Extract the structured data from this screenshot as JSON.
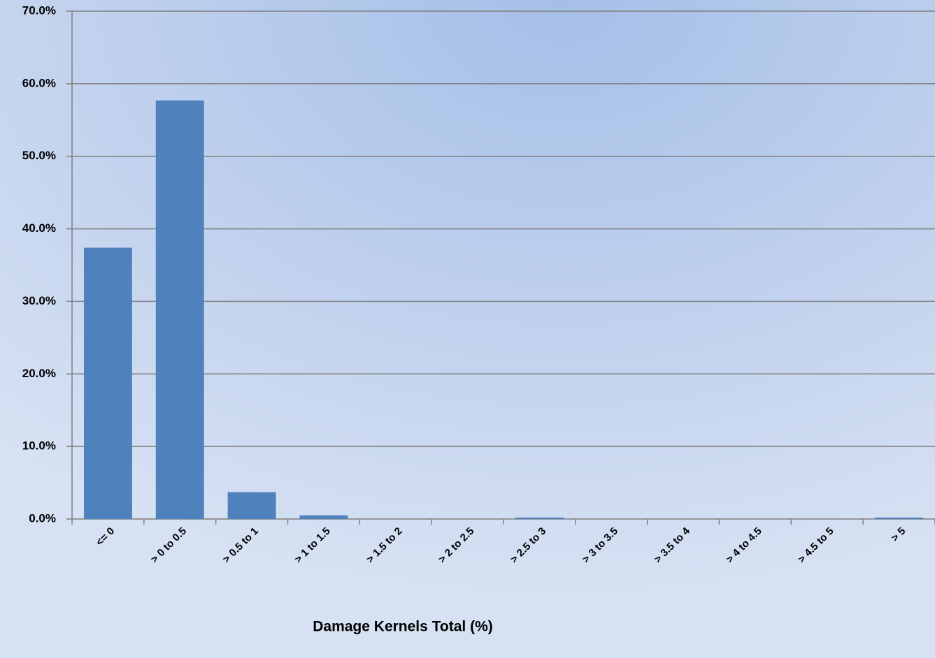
{
  "chart_data": {
    "type": "bar",
    "x_label": "Damage Kernels Total (%)",
    "categories": [
      "<= 0",
      "> 0 to 0.5",
      "> 0.5 to 1",
      "> 1 to 1.5",
      "> 1.5 to 2",
      "> 2 to 2.5",
      "> 2.5 to 3",
      "> 3 to 3.5",
      "> 3.5 to 4",
      "> 4 to 4.5",
      "> 4.5 to 5",
      "> 5"
    ],
    "values": [
      37.4,
      57.7,
      3.7,
      0.5,
      0,
      0,
      0.2,
      0,
      0,
      0,
      0,
      0.2
    ],
    "color": "#4f81bd",
    "ylim": [
      0,
      70
    ],
    "yticks": [
      {
        "value": 0,
        "label": "0.0%"
      },
      {
        "value": 10,
        "label": "10.0%"
      },
      {
        "value": 20,
        "label": "20.0%"
      },
      {
        "value": 30,
        "label": "30.0%"
      },
      {
        "value": 40,
        "label": "40.0%"
      },
      {
        "value": 50,
        "label": "50.0%"
      },
      {
        "value": 60,
        "label": "60.0%"
      },
      {
        "value": 70,
        "label": "70.0%"
      }
    ],
    "grid": true
  }
}
